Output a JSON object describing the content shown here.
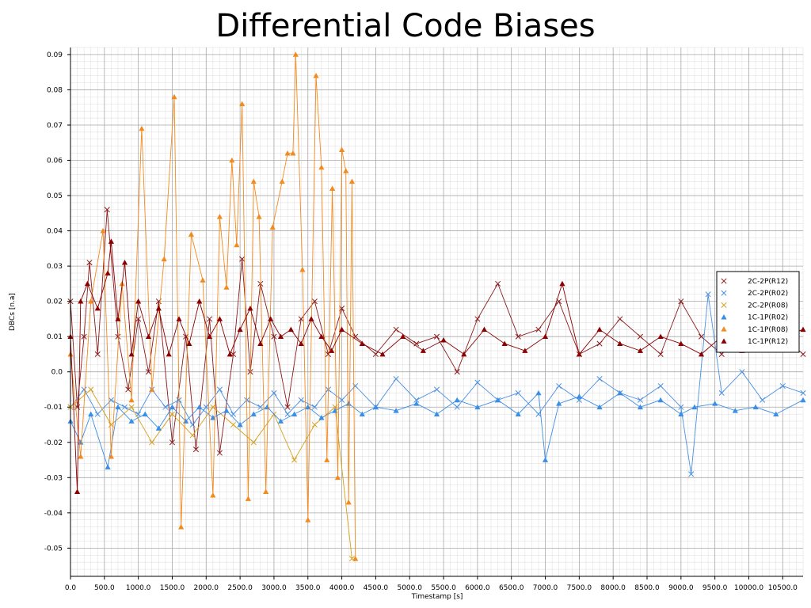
{
  "chart_data": {
    "type": "line",
    "title": "Differential Code Biases",
    "xlabel": "Timestamp [s]",
    "ylabel": "DBCs [n.a]",
    "xlim": [
      0,
      10800
    ],
    "ylim": [
      -0.058,
      0.092
    ],
    "grid": true,
    "legend_position": "right",
    "x_ticks": [
      "0.0",
      "500.0",
      "1000.0",
      "1500.0",
      "2000.0",
      "2500.0",
      "3000.0",
      "3500.0",
      "4000.0",
      "4500.0",
      "5000.0",
      "5500.0",
      "6000.0",
      "6500.0",
      "7000.0",
      "7500.0",
      "8000.0",
      "8500.0",
      "9000.0",
      "9500.0",
      "10000.0",
      "10500.0"
    ],
    "y_ticks": [
      "0.09",
      "0.08",
      "0.07",
      "0.06",
      "0.05",
      "0.04",
      "0.03",
      "0.02",
      "0.01",
      "0.0",
      "-0.01",
      "-0.02",
      "-0.03",
      "-0.04",
      "-0.05"
    ],
    "series": [
      {
        "name": "2C-2P(R12)",
        "color": "#8b1a1a",
        "marker": "x",
        "x": [
          0,
          100,
          200,
          280,
          400,
          540,
          700,
          850,
          1000,
          1150,
          1300,
          1500,
          1700,
          1850,
          2050,
          2200,
          2400,
          2530,
          2650,
          2800,
          3000,
          3200,
          3400,
          3600,
          3800,
          4000,
          4200,
          4500,
          4800,
          5100,
          5400,
          5700,
          6000,
          6300,
          6600,
          6900,
          7200,
          7500,
          7800,
          8100,
          8400,
          8700,
          9000,
          9300,
          9600,
          9900,
          10200,
          10500,
          10800
        ],
        "values": [
          0.02,
          -0.01,
          0.01,
          0.031,
          0.005,
          0.046,
          0.01,
          -0.005,
          0.015,
          0.0,
          0.02,
          -0.02,
          0.01,
          -0.022,
          0.015,
          -0.023,
          0.005,
          0.032,
          0.0,
          0.025,
          0.01,
          -0.01,
          0.015,
          0.02,
          0.005,
          0.018,
          0.01,
          0.005,
          0.012,
          0.008,
          0.01,
          0.0,
          0.015,
          0.025,
          0.01,
          0.012,
          0.02,
          0.005,
          0.008,
          0.015,
          0.01,
          0.005,
          0.02,
          0.01,
          0.005,
          0.012,
          0.008,
          0.01,
          0.005
        ]
      },
      {
        "name": "2C-2P(R02)",
        "color": "#4a90e2",
        "marker": "x",
        "x": [
          0,
          200,
          400,
          600,
          800,
          1000,
          1200,
          1400,
          1600,
          1800,
          2000,
          2200,
          2400,
          2600,
          2800,
          3000,
          3200,
          3400,
          3600,
          3800,
          4000,
          4200,
          4500,
          4800,
          5100,
          5400,
          5700,
          6000,
          6300,
          6600,
          6900,
          7200,
          7500,
          7800,
          8100,
          8400,
          8700,
          9000,
          9150,
          9400,
          9600,
          9900,
          10200,
          10500,
          10800
        ],
        "values": [
          -0.01,
          -0.005,
          -0.012,
          -0.008,
          -0.01,
          -0.012,
          -0.005,
          -0.01,
          -0.008,
          -0.015,
          -0.01,
          -0.005,
          -0.012,
          -0.008,
          -0.01,
          -0.006,
          -0.012,
          -0.008,
          -0.01,
          -0.005,
          -0.008,
          -0.004,
          -0.01,
          -0.002,
          -0.008,
          -0.005,
          -0.01,
          -0.003,
          -0.008,
          -0.006,
          -0.012,
          -0.004,
          -0.008,
          -0.002,
          -0.006,
          -0.008,
          -0.004,
          -0.01,
          -0.029,
          0.022,
          -0.006,
          0.0,
          -0.008,
          -0.004,
          -0.006
        ]
      },
      {
        "name": "2C-2P(R08)",
        "color": "#d4a017",
        "marker": "x",
        "x": [
          0,
          300,
          600,
          900,
          1200,
          1500,
          1800,
          2100,
          2400,
          2700,
          3000,
          3300,
          3600,
          3900,
          4150
        ],
        "values": [
          -0.01,
          -0.005,
          -0.015,
          -0.01,
          -0.02,
          -0.012,
          -0.018,
          -0.01,
          -0.015,
          -0.02,
          -0.012,
          -0.025,
          -0.015,
          -0.01,
          -0.053
        ]
      },
      {
        "name": "1C-1P(R02)",
        "color": "#3a8ee6",
        "marker": "triangle",
        "x": [
          0,
          150,
          300,
          550,
          700,
          900,
          1100,
          1300,
          1500,
          1700,
          1900,
          2100,
          2300,
          2500,
          2700,
          2900,
          3100,
          3300,
          3500,
          3700,
          3900,
          4100,
          4300,
          4500,
          4800,
          5100,
          5400,
          5700,
          6000,
          6300,
          6600,
          6900,
          7000,
          7200,
          7500,
          7800,
          8100,
          8400,
          8700,
          9000,
          9200,
          9500,
          9800,
          10100,
          10400,
          10800
        ],
        "values": [
          -0.014,
          -0.02,
          -0.012,
          -0.027,
          -0.01,
          -0.014,
          -0.012,
          -0.016,
          -0.01,
          -0.014,
          -0.01,
          -0.013,
          -0.011,
          -0.015,
          -0.012,
          -0.01,
          -0.014,
          -0.012,
          -0.01,
          -0.013,
          -0.011,
          -0.009,
          -0.012,
          -0.01,
          -0.011,
          -0.009,
          -0.012,
          -0.008,
          -0.01,
          -0.008,
          -0.012,
          -0.006,
          -0.025,
          -0.009,
          -0.007,
          -0.01,
          -0.006,
          -0.01,
          -0.008,
          -0.012,
          -0.01,
          -0.009,
          -0.011,
          -0.01,
          -0.012,
          -0.008
        ]
      },
      {
        "name": "1C-1P(R08)",
        "color": "#f28a1e",
        "marker": "triangle",
        "x": [
          0,
          150,
          300,
          480,
          600,
          760,
          900,
          1050,
          1200,
          1380,
          1530,
          1630,
          1780,
          1950,
          2100,
          2200,
          2300,
          2380,
          2450,
          2530,
          2620,
          2700,
          2780,
          2880,
          2980,
          3120,
          3200,
          3280,
          3320,
          3420,
          3500,
          3620,
          3700,
          3780,
          3860,
          3940,
          4000,
          4060,
          4100,
          4150,
          4200
        ],
        "values": [
          0.005,
          -0.024,
          0.02,
          0.04,
          -0.024,
          0.025,
          -0.008,
          0.069,
          -0.005,
          0.032,
          0.078,
          -0.044,
          0.039,
          0.026,
          -0.035,
          0.044,
          0.024,
          0.06,
          0.036,
          0.076,
          -0.036,
          0.054,
          0.044,
          -0.034,
          0.041,
          0.054,
          0.062,
          0.062,
          0.09,
          0.029,
          -0.042,
          0.084,
          0.058,
          -0.025,
          0.052,
          -0.03,
          0.063,
          0.057,
          -0.037,
          0.054,
          -0.053
        ]
      },
      {
        "name": "1C-1P(R12)",
        "color": "#8b0000",
        "marker": "triangle",
        "x": [
          0,
          100,
          150,
          250,
          400,
          550,
          600,
          700,
          800,
          900,
          1000,
          1150,
          1300,
          1450,
          1600,
          1750,
          1900,
          2050,
          2200,
          2350,
          2500,
          2650,
          2800,
          2950,
          3100,
          3250,
          3400,
          3550,
          3700,
          3850,
          4000,
          4300,
          4600,
          4900,
          5200,
          5500,
          5800,
          6100,
          6400,
          6700,
          7000,
          7250,
          7500,
          7800,
          8100,
          8400,
          8700,
          9000,
          9300,
          9600,
          9900,
          10200,
          10500,
          10800
        ],
        "values": [
          0.01,
          -0.034,
          0.02,
          0.025,
          0.018,
          0.028,
          0.037,
          0.015,
          0.031,
          0.005,
          0.02,
          0.01,
          0.018,
          0.005,
          0.015,
          0.008,
          0.02,
          0.01,
          0.015,
          0.005,
          0.012,
          0.018,
          0.008,
          0.015,
          0.01,
          0.012,
          0.008,
          0.015,
          0.01,
          0.006,
          0.012,
          0.008,
          0.005,
          0.01,
          0.006,
          0.009,
          0.005,
          0.012,
          0.008,
          0.006,
          0.01,
          0.025,
          0.005,
          0.012,
          0.008,
          0.006,
          0.01,
          0.008,
          0.005,
          0.01,
          0.006,
          0.008,
          0.01,
          0.012
        ]
      }
    ]
  }
}
